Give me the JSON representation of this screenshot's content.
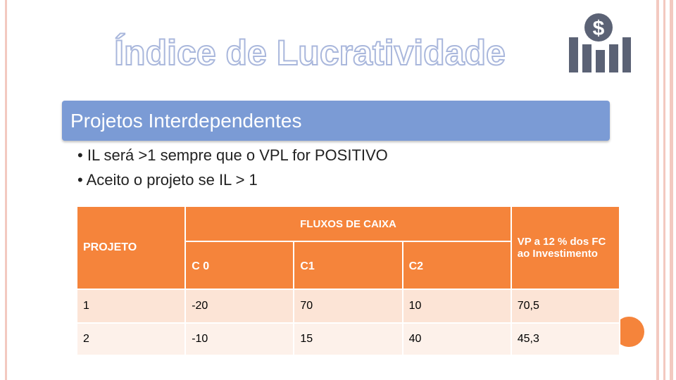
{
  "header": {
    "title": "Índice de Lucratividade"
  },
  "section": {
    "title": "Projetos Interdependentes",
    "bullets": [
      "IL será >1 sempre que o VPL for POSITIVO",
      "Aceito o projeto se IL > 1"
    ]
  },
  "table": {
    "project_header": "PROJETO",
    "group_header": "FLUXOS DE CAIXA",
    "columns": [
      "C 0",
      "C1",
      "C2"
    ],
    "pv_header": "VP a 12 % dos FC ao Investimento",
    "rows": [
      [
        "1",
        "-20",
        "70",
        "10",
        "70,5"
      ],
      [
        "2",
        "-10",
        "15",
        "40",
        "45,3"
      ]
    ]
  }
}
